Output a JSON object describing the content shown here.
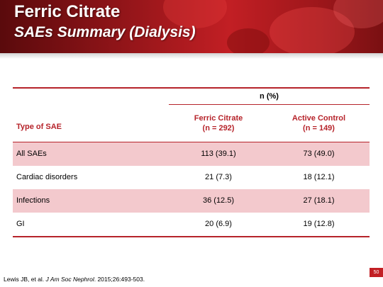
{
  "slide": {
    "title": "Ferric Citrate",
    "subtitle": "SAEs Summary (Dialysis)",
    "page_number": "50"
  },
  "table": {
    "group_header": "n (%)",
    "type_header": "Type of SAE",
    "columns": [
      {
        "name": "Ferric Citrate",
        "n": "(n = 292)"
      },
      {
        "name": "Active Control",
        "n": "(n = 149)"
      }
    ],
    "rows": [
      {
        "label": "All SAEs",
        "values": [
          "113 (39.1)",
          "73 (49.0)"
        ]
      },
      {
        "label": "Cardiac disorders",
        "values": [
          "21 (7.3)",
          "18 (12.1)"
        ]
      },
      {
        "label": "Infections",
        "values": [
          "36 (12.5)",
          "27 (18.1)"
        ]
      },
      {
        "label": "GI",
        "values": [
          "20 (6.9)",
          "19 (12.8)"
        ]
      }
    ]
  },
  "citation": {
    "authors": "Lewis JB, et al.",
    "journal": "J Am Soc Nephrol",
    "details": ". 2015;26:493-503."
  },
  "colors": {
    "accent": "#b6232a",
    "row_shade": "#f3c9cd",
    "banner": "#c21f24"
  }
}
